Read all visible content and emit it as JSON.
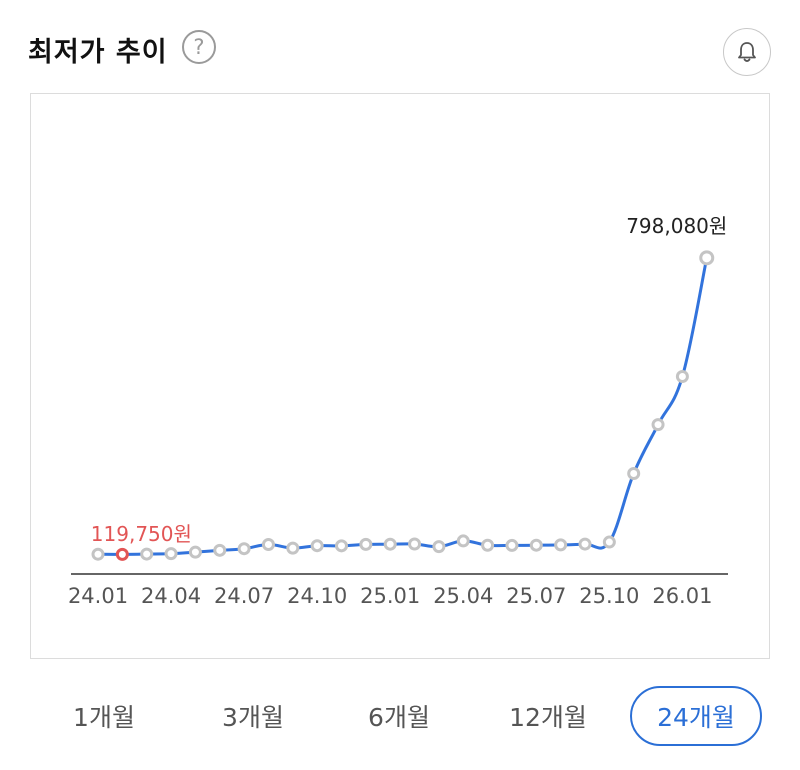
{
  "header": {
    "title": "최저가 추이",
    "help_glyph": "?",
    "help_icon": "question-circle-icon",
    "bell_icon": "bell-icon"
  },
  "colors": {
    "line": "#3273dc",
    "marker_border": "#c4c4c4",
    "min_marker": "#e25555",
    "min_label": "#e25555",
    "max_label": "#222222",
    "axis": "#333333",
    "tick_label": "#555555",
    "active_period": "#2b6fd6"
  },
  "chart_data": {
    "type": "line",
    "x": [
      "24.01",
      "24.02",
      "24.03",
      "24.04",
      "24.05",
      "24.06",
      "24.07",
      "24.08",
      "24.09",
      "24.10",
      "24.11",
      "24.12",
      "25.01",
      "25.02",
      "25.03",
      "25.04",
      "25.05",
      "25.06",
      "25.07",
      "25.08",
      "25.09",
      "25.10",
      "25.11",
      "25.12",
      "26.01",
      "26.02"
    ],
    "series": [
      {
        "values": [
          120100,
          119750,
          120400,
          121400,
          124800,
          129000,
          132700,
          142300,
          134100,
          139600,
          139300,
          142600,
          143000,
          143400,
          137400,
          150500,
          140600,
          140200,
          140700,
          141400,
          143300,
          147900,
          304800,
          416500,
          526600,
          798080
        ]
      }
    ],
    "ticks": [
      {
        "label": "24.01",
        "index": 0
      },
      {
        "label": "24.04",
        "index": 3
      },
      {
        "label": "24.07",
        "index": 6
      },
      {
        "label": "24.10",
        "index": 9
      },
      {
        "label": "25.01",
        "index": 12
      },
      {
        "label": "25.04",
        "index": 15
      },
      {
        "label": "25.07",
        "index": 18
      },
      {
        "label": "25.10",
        "index": 21
      },
      {
        "label": "26.01",
        "index": 24
      }
    ],
    "min_point": {
      "index": 1,
      "label": "119,750원"
    },
    "max_point": {
      "index": 25,
      "label": "798,080원"
    },
    "ylim": [
      100000,
      800000
    ],
    "grid": false
  },
  "periods": [
    {
      "label": "1개월",
      "active": false
    },
    {
      "label": "3개월",
      "active": false
    },
    {
      "label": "6개월",
      "active": false
    },
    {
      "label": "12개월",
      "active": false
    },
    {
      "label": "24개월",
      "active": true
    }
  ]
}
